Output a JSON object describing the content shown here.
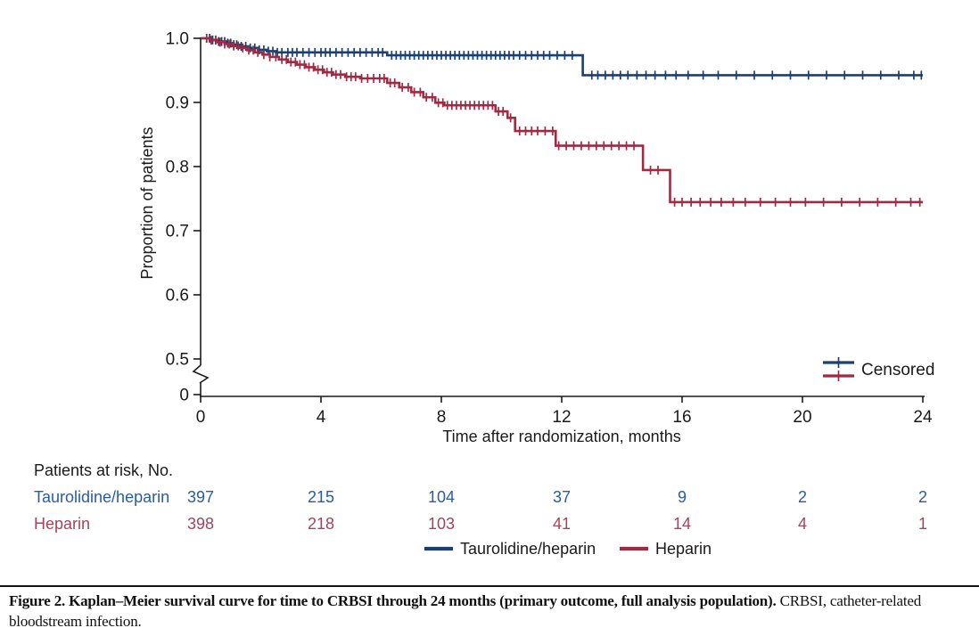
{
  "figure": {
    "caption_bold": "Figure 2. Kaplan–Meier survival curve for time to CRBSI through 24 months (primary outcome, full analysis population).",
    "caption_regular": "CRBSI, catheter-related bloodstream infection."
  },
  "colors": {
    "taurolidine_curve": "#1a4071",
    "heparin_curve": "#9e2b44",
    "taurolidine_text": "#2b5c9f",
    "heparin_text": "#a4445a",
    "axis": "#1a1a1a"
  },
  "chart_data": {
    "type": "line",
    "subtype": "kaplan-meier-step",
    "title": "",
    "xlabel": "Time after randomization, months",
    "ylabel": "Proportion of patients",
    "xlim": [
      0,
      24
    ],
    "xticks": [
      0,
      4,
      8,
      12,
      16,
      20,
      24
    ],
    "yticks": [
      {
        "label": "1.0",
        "value": 1.0
      },
      {
        "label": "0.9",
        "value": 0.9
      },
      {
        "label": "0.8",
        "value": 0.8
      },
      {
        "label": "0.7",
        "value": 0.7
      },
      {
        "label": "0.6",
        "value": 0.6
      },
      {
        "label": "0.5",
        "value": 0.5
      },
      {
        "label": "0",
        "value": 0,
        "after_break": true
      }
    ],
    "y_axis_break": true,
    "grid": false,
    "censored_legend_label": "Censored",
    "legend_position": "bottom-center",
    "series": [
      {
        "name": "Taurolidine/heparin",
        "color": "#1a4071",
        "steps": [
          [
            0,
            1.0
          ],
          [
            0.35,
            0.9975
          ],
          [
            0.6,
            0.995
          ],
          [
            0.85,
            0.9925
          ],
          [
            1.1,
            0.99
          ],
          [
            1.35,
            0.9875
          ],
          [
            1.6,
            0.985
          ],
          [
            1.9,
            0.982
          ],
          [
            2.2,
            0.98
          ],
          [
            2.5,
            0.978
          ],
          [
            6.2,
            0.9735
          ],
          [
            12.7,
            0.9425
          ]
        ],
        "end_time": 24,
        "censor_times": [
          0.2,
          0.3,
          0.4,
          0.5,
          0.6,
          0.7,
          0.8,
          0.9,
          1.0,
          1.1,
          1.2,
          1.35,
          1.5,
          1.65,
          1.8,
          1.95,
          2.1,
          2.25,
          2.4,
          2.55,
          2.7,
          2.9,
          3.05,
          3.2,
          3.4,
          3.6,
          3.8,
          4.0,
          4.15,
          4.3,
          4.5,
          4.7,
          4.9,
          5.1,
          5.3,
          5.5,
          5.7,
          5.9,
          6.05,
          6.35,
          6.5,
          6.65,
          6.8,
          6.95,
          7.1,
          7.25,
          7.4,
          7.55,
          7.7,
          7.85,
          8.0,
          8.15,
          8.3,
          8.45,
          8.6,
          8.75,
          8.9,
          9.05,
          9.2,
          9.35,
          9.5,
          9.65,
          9.8,
          9.95,
          10.1,
          10.25,
          10.4,
          10.6,
          10.8,
          11.0,
          11.2,
          11.4,
          11.6,
          11.85,
          12.1,
          12.35,
          13.0,
          13.2,
          13.45,
          13.7,
          13.95,
          14.2,
          14.5,
          14.8,
          15.1,
          15.45,
          15.8,
          16.2,
          16.7,
          17.2,
          17.8,
          18.4,
          19.0,
          19.6,
          20.2,
          20.8,
          21.4,
          22.0,
          22.6,
          23.2,
          23.7,
          23.95
        ]
      },
      {
        "name": "Heparin",
        "color": "#9e2b44",
        "steps": [
          [
            0,
            1.0
          ],
          [
            0.3,
            0.997
          ],
          [
            0.55,
            0.994
          ],
          [
            0.8,
            0.991
          ],
          [
            1.05,
            0.988
          ],
          [
            1.3,
            0.985
          ],
          [
            1.55,
            0.9815
          ],
          [
            1.8,
            0.978
          ],
          [
            2.05,
            0.9745
          ],
          [
            2.3,
            0.971
          ],
          [
            2.6,
            0.967
          ],
          [
            2.9,
            0.963
          ],
          [
            3.2,
            0.959
          ],
          [
            3.5,
            0.955
          ],
          [
            3.8,
            0.951
          ],
          [
            4.1,
            0.947
          ],
          [
            4.4,
            0.9435
          ],
          [
            4.8,
            0.94
          ],
          [
            5.3,
            0.9375
          ],
          [
            6.2,
            0.9305
          ],
          [
            6.6,
            0.9235
          ],
          [
            7.0,
            0.916
          ],
          [
            7.4,
            0.908
          ],
          [
            7.8,
            0.8995
          ],
          [
            8.1,
            0.8955
          ],
          [
            9.8,
            0.886
          ],
          [
            10.2,
            0.876
          ],
          [
            10.45,
            0.8555
          ],
          [
            11.8,
            0.8325
          ],
          [
            14.7,
            0.7945
          ],
          [
            15.6,
            0.7445
          ]
        ],
        "end_time": 24,
        "censor_times": [
          0.2,
          0.35,
          0.5,
          0.65,
          0.8,
          0.95,
          1.1,
          1.25,
          1.4,
          1.6,
          1.75,
          1.9,
          2.1,
          2.3,
          2.5,
          2.7,
          2.85,
          3.0,
          3.15,
          3.3,
          3.45,
          3.6,
          3.75,
          3.9,
          4.05,
          4.2,
          4.35,
          4.5,
          4.65,
          4.85,
          5.0,
          5.15,
          5.35,
          5.55,
          5.75,
          5.95,
          6.1,
          6.3,
          6.45,
          6.7,
          6.9,
          7.1,
          7.3,
          7.5,
          7.7,
          7.9,
          8.05,
          8.2,
          8.35,
          8.5,
          8.65,
          8.8,
          8.95,
          9.1,
          9.25,
          9.4,
          9.55,
          9.7,
          9.9,
          10.05,
          10.3,
          10.6,
          10.8,
          11.0,
          11.2,
          11.45,
          11.7,
          11.9,
          12.15,
          12.4,
          12.65,
          12.9,
          13.15,
          13.4,
          13.65,
          13.9,
          14.15,
          14.4,
          14.95,
          15.2,
          15.75,
          16.0,
          16.3,
          16.6,
          16.95,
          17.3,
          17.7,
          18.1,
          18.6,
          19.1,
          19.6,
          20.1,
          20.7,
          21.3,
          21.9,
          22.5,
          23.1,
          23.6,
          23.9
        ]
      }
    ]
  },
  "risk_table": {
    "title": "Patients at risk, No.",
    "time_points": [
      0,
      4,
      8,
      12,
      16,
      20,
      24
    ],
    "rows": [
      {
        "label": "Taurolidine/heparin",
        "color": "#2b5c9f",
        "values": [
          "397",
          "215",
          "104",
          "37",
          "9",
          "2",
          "2"
        ]
      },
      {
        "label": "Heparin",
        "color": "#a4445a",
        "values": [
          "398",
          "218",
          "103",
          "41",
          "14",
          "4",
          "1"
        ]
      }
    ]
  }
}
